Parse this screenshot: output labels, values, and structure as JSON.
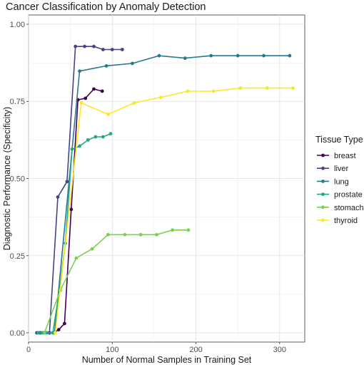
{
  "chart_data": {
    "type": "line",
    "title": "Cancer Classification by Anomaly Detection",
    "xlabel": "Number of Normal Samples in Training Set",
    "ylabel": "Diagnostic Performance (Specificity)",
    "xlim": [
      0,
      330
    ],
    "ylim": [
      -0.03,
      1.03
    ],
    "x_ticks": [
      0,
      100,
      200,
      300
    ],
    "x_tick_labels": [
      "0",
      "100",
      "200",
      "300"
    ],
    "y_ticks": [
      0,
      0.25,
      0.5,
      0.75,
      1.0
    ],
    "y_tick_labels": [
      "0.00",
      "0.25",
      "0.50",
      "0.75",
      "1.00"
    ],
    "grid": true,
    "legend": {
      "title": "Tissue Type",
      "position": "right"
    },
    "series": [
      {
        "name": "breast",
        "color": "#440154",
        "x": [
          10,
          14,
          20,
          25,
          30,
          36,
          43,
          51,
          59,
          68,
          78,
          88
        ],
        "y": [
          0.0,
          0.0,
          0.0,
          0.0,
          0.0,
          0.01,
          0.03,
          0.4,
          0.755,
          0.76,
          0.79,
          0.783
        ]
      },
      {
        "name": "liver",
        "color": "#414487",
        "x": [
          14,
          18,
          25,
          35,
          46,
          56,
          67,
          78,
          89,
          100,
          112
        ],
        "y": [
          0.0,
          0.0,
          0.0,
          0.44,
          0.49,
          0.928,
          0.928,
          0.928,
          0.918,
          0.918,
          0.918
        ]
      },
      {
        "name": "lung",
        "color": "#2A788E",
        "x": [
          12,
          19,
          31,
          61,
          93,
          124,
          156,
          187,
          218,
          250,
          281,
          312
        ],
        "y": [
          0.0,
          0.0,
          0.0,
          0.848,
          0.865,
          0.873,
          0.898,
          0.89,
          0.898,
          0.898,
          0.898,
          0.898
        ]
      },
      {
        "name": "prostate",
        "color": "#22A884",
        "x": [
          11,
          16,
          22,
          29,
          37,
          44,
          52,
          61,
          71,
          80,
          89,
          98,
          105
        ],
        "y": [
          0.0,
          0.0,
          0.0,
          0.0,
          0.138,
          0.29,
          0.595,
          0.605,
          0.625,
          0.635,
          0.635,
          0.645,
          null
        ]
      },
      {
        "name": "stomach",
        "color": "#7AD151",
        "x": [
          19,
          38,
          57,
          76,
          95,
          115,
          134,
          153,
          172,
          191
        ],
        "y": [
          0.0,
          0.138,
          0.242,
          0.272,
          0.318,
          0.318,
          0.318,
          0.318,
          0.333,
          0.333
        ]
      },
      {
        "name": "thyroid",
        "color": "#FDE725",
        "x": [
          32,
          63,
          95,
          126,
          158,
          190,
          221,
          253,
          285,
          316
        ],
        "y": [
          0.0,
          0.745,
          0.708,
          0.745,
          0.763,
          0.783,
          0.783,
          0.793,
          0.793,
          0.793
        ]
      }
    ]
  }
}
